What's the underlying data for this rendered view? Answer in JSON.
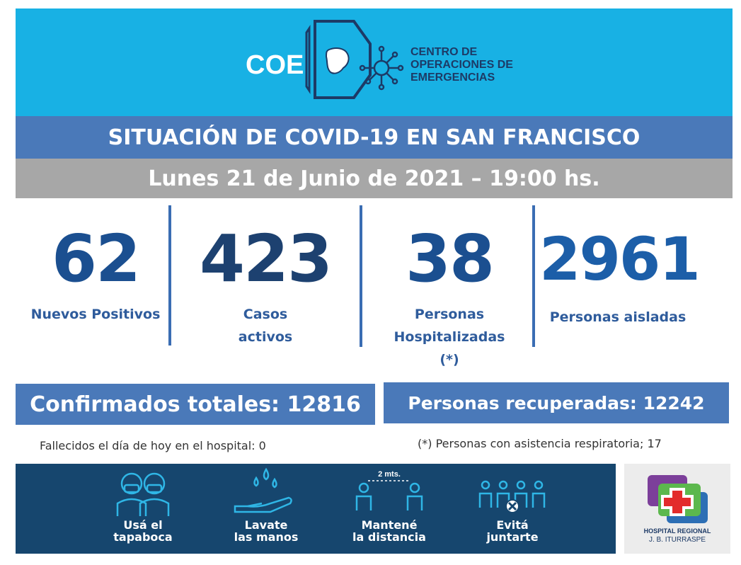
{
  "logo": {
    "word": "COE",
    "line1": "CENTRO DE",
    "line2": "OPERACIONES DE",
    "line3": "EMERGENCIAS"
  },
  "header": {
    "title": "SITUACIÓN DE COVID-19 EN SAN FRANCISCO",
    "date": "Lunes 21 de Junio de 2021 – 19:00 hs."
  },
  "stats": [
    {
      "value": "62",
      "label_1": "Nuevos Positivos",
      "label_2": "",
      "label_3": ""
    },
    {
      "value": "423",
      "label_1": "Casos",
      "label_2": "activos",
      "label_3": ""
    },
    {
      "value": "38",
      "label_1": "Personas",
      "label_2": "Hospitalizadas",
      "label_3": "(*)"
    },
    {
      "value": "2961",
      "label_1": "Personas aisladas",
      "label_2": "",
      "label_3": ""
    }
  ],
  "totals": {
    "confirmed": "Confirmados totales: 12816",
    "recovered": "Personas recuperadas: 12242"
  },
  "notes": {
    "deaths": "Fallecidos el día de hoy en el hospital: 0",
    "respiratory": "(*) Personas con asistencia respiratoria; 17"
  },
  "tips": [
    {
      "line1": "Usá el",
      "line2": "tapaboca",
      "icon": "mask-icon"
    },
    {
      "line1": "Lavate",
      "line2": "las manos",
      "icon": "hand-wash-icon"
    },
    {
      "line1": "Mantené",
      "line2": "la distancia",
      "icon": "distance-icon",
      "badge": "2 mts."
    },
    {
      "line1": "Evitá",
      "line2": "juntarte",
      "icon": "no-gathering-icon"
    }
  ],
  "hospital": {
    "line1": "HOSPITAL REGIONAL",
    "line2": "J. B. ITURRASPE"
  },
  "colors": {
    "header": "#18b1e4",
    "band": "#4a79b9",
    "date_band": "#a7a7a7",
    "number": "#1b4f90",
    "bottom": "#16466e"
  }
}
